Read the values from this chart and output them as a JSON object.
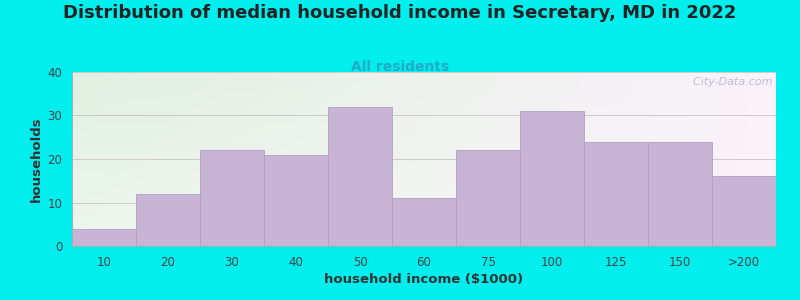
{
  "title": "Distribution of median household income in Secretary, MD in 2022",
  "subtitle": "All residents",
  "xlabel": "household income ($1000)",
  "ylabel": "households",
  "background_color": "#00EEEE",
  "bar_color": "#c8b4d4",
  "bar_edge_color": "#b0a0c4",
  "categories": [
    "10",
    "20",
    "30",
    "40",
    "50",
    "60",
    "75",
    "100",
    "125",
    "150",
    ">200"
  ],
  "values": [
    4,
    12,
    22,
    21,
    32,
    11,
    22,
    31,
    24,
    24,
    16
  ],
  "ylim": [
    0,
    40
  ],
  "yticks": [
    0,
    10,
    20,
    30,
    40
  ],
  "title_fontsize": 13,
  "subtitle_fontsize": 10,
  "axis_label_fontsize": 9.5,
  "tick_fontsize": 8.5,
  "watermark": "  City-Data.com"
}
